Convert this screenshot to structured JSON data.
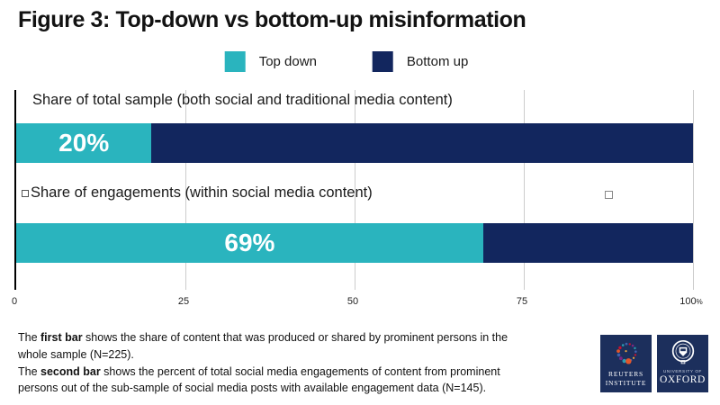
{
  "title": "Figure 3: Top-down vs bottom-up misinformation",
  "legend": {
    "items": [
      {
        "label": "Top down",
        "color": "#2ab4be"
      },
      {
        "label": "Bottom up",
        "color": "#12265e"
      }
    ]
  },
  "chart_data": {
    "type": "bar",
    "orientation": "horizontal",
    "stacked": true,
    "categories": [
      "Share of total sample (both social and traditional media content)",
      "Share of engagements (within social media content)"
    ],
    "series": [
      {
        "name": "Top down",
        "color": "#2ab4be",
        "values": [
          20,
          69
        ]
      },
      {
        "name": "Bottom up",
        "color": "#12265e",
        "values": [
          80,
          31
        ]
      }
    ],
    "value_labels": [
      "20%",
      "69%"
    ],
    "xlim": [
      0,
      100
    ],
    "tick_labels": [
      "0",
      "25",
      "50",
      "75",
      "100"
    ],
    "tick_suffix": "%",
    "grid": true,
    "legend_position": "top"
  },
  "footnote": {
    "p1": {
      "pre": "The ",
      "bold": "first bar",
      "post": " shows the share of content that was produced or shared by prominent persons in the whole sample (N=225)."
    },
    "p2": {
      "pre": "The ",
      "bold": "second bar",
      "post": " shows the percent of total social media engagements of content from prominent persons out of the sub-sample of social media posts with available engagement data (N=145)."
    }
  },
  "logos": {
    "background": "#1c2f5c",
    "reuters": {
      "line1": "REUTERS",
      "line2": "INSTITUTE"
    },
    "oxford": {
      "line1": "UNIVERSITY OF",
      "line2": "OXFORD"
    }
  }
}
